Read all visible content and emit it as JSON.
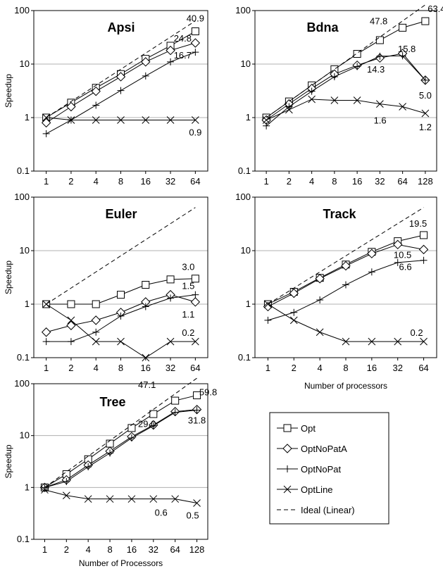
{
  "chart_data": [
    {
      "type": "line",
      "title": "Apsi",
      "ylabel": "Speedup",
      "xlabel": "",
      "x": [
        "1",
        "2",
        "4",
        "8",
        "16",
        "32",
        "64"
      ],
      "ylim": [
        0.1,
        100
      ],
      "yscale": "log",
      "yticks": [
        "0.1",
        "1",
        "10",
        "100"
      ],
      "grid": "horizontal",
      "series": [
        {
          "key": "opt",
          "name": "Opt",
          "marker": "square",
          "values": [
            1,
            1.9,
            3.6,
            6.5,
            12.5,
            22,
            40.9
          ]
        },
        {
          "key": "optnopata",
          "name": "OptNoPatA",
          "marker": "diamond",
          "values": [
            0.8,
            1.6,
            3.1,
            5.8,
            11,
            18,
            24.8
          ]
        },
        {
          "key": "optnopat",
          "name": "OptNoPat",
          "marker": "plus",
          "values": [
            0.5,
            0.9,
            1.7,
            3.2,
            6,
            11,
            16.7
          ]
        },
        {
          "key": "optline",
          "name": "OptLine",
          "marker": "x",
          "values": [
            1,
            0.9,
            0.9,
            0.9,
            0.9,
            0.9,
            0.9
          ]
        },
        {
          "key": "ideal",
          "name": "Ideal (Linear)",
          "marker": "none",
          "dashed": true,
          "values": [
            1,
            2,
            4,
            8,
            16,
            32,
            64
          ]
        }
      ],
      "annotations": [
        {
          "text": "40.9",
          "xi": 6,
          "y": 40.9
        },
        {
          "text": "24.8",
          "xi": 6,
          "y": 24.8
        },
        {
          "text": "16.7",
          "xi": 6,
          "y": 16.7
        },
        {
          "text": "0.9",
          "xi": 6,
          "y": 0.9
        }
      ]
    },
    {
      "type": "line",
      "title": "Bdna",
      "ylabel": "",
      "xlabel": "",
      "x": [
        "1",
        "2",
        "4",
        "8",
        "16",
        "32",
        "64",
        "128"
      ],
      "ylim": [
        0.1,
        100
      ],
      "yscale": "log",
      "yticks": [
        "0.1",
        "1",
        "10",
        "100"
      ],
      "grid": "horizontal",
      "series": [
        {
          "key": "opt",
          "name": "Opt",
          "marker": "square",
          "values": [
            1,
            2,
            4,
            8,
            15.5,
            28,
            47.8,
            63.4
          ]
        },
        {
          "key": "optnopata",
          "name": "OptNoPatA",
          "marker": "diamond",
          "values": [
            0.9,
            1.8,
            3.5,
            6.5,
            9.5,
            13,
            15.8,
            5
          ]
        },
        {
          "key": "optnopat",
          "name": "OptNoPat",
          "marker": "plus",
          "values": [
            0.7,
            1.6,
            3.1,
            5.8,
            9,
            14,
            14.3,
            5
          ]
        },
        {
          "key": "optline",
          "name": "OptLine",
          "marker": "x",
          "values": [
            0.9,
            1.4,
            2.2,
            2.1,
            2.1,
            1.8,
            1.6,
            1.2
          ]
        },
        {
          "key": "ideal",
          "name": "Ideal (Linear)",
          "marker": "none",
          "dashed": true,
          "values": [
            1,
            2,
            4,
            8,
            16,
            32,
            64,
            128
          ]
        }
      ],
      "annotations": [
        {
          "text": "63.4",
          "xi": 7,
          "y": 63.4
        },
        {
          "text": "47.8",
          "xi": 6,
          "y": 47.8
        },
        {
          "text": "15.8",
          "xi": 6,
          "y": 15.8
        },
        {
          "text": "14.3",
          "xi": 6,
          "y": 14.3
        },
        {
          "text": "5.0",
          "xi": 7,
          "y": 5
        },
        {
          "text": "1.6",
          "xi": 6,
          "y": 1.6
        },
        {
          "text": "1.2",
          "xi": 7,
          "y": 1.2
        }
      ]
    },
    {
      "type": "line",
      "title": "Euler",
      "ylabel": "Speedup",
      "xlabel": "",
      "x": [
        "1",
        "2",
        "4",
        "8",
        "16",
        "32",
        "64"
      ],
      "ylim": [
        0.1,
        100
      ],
      "yscale": "log",
      "yticks": [
        "0.1",
        "1",
        "10",
        "100"
      ],
      "grid": "horizontal",
      "series": [
        {
          "key": "opt",
          "name": "Opt",
          "marker": "square",
          "values": [
            1,
            1,
            1,
            1.5,
            2.3,
            2.9,
            3
          ]
        },
        {
          "key": "optnopata",
          "name": "OptNoPatA",
          "marker": "diamond",
          "values": [
            0.3,
            0.4,
            0.5,
            0.7,
            1.1,
            1.5,
            1.1
          ]
        },
        {
          "key": "optnopat",
          "name": "OptNoPat",
          "marker": "plus",
          "values": [
            0.2,
            0.2,
            0.3,
            0.6,
            0.9,
            1.3,
            1.5
          ]
        },
        {
          "key": "optline",
          "name": "OptLine",
          "marker": "x",
          "values": [
            1,
            0.5,
            0.2,
            0.2,
            0.1,
            0.2,
            0.2
          ]
        },
        {
          "key": "ideal",
          "name": "Ideal (Linear)",
          "marker": "none",
          "dashed": true,
          "values": [
            1,
            2,
            4,
            8,
            16,
            32,
            64
          ]
        }
      ],
      "annotations": [
        {
          "text": "3.0",
          "xi": 6,
          "y": 3
        },
        {
          "text": "1.5",
          "xi": 6,
          "y": 1.5
        },
        {
          "text": "1.1",
          "xi": 6,
          "y": 1.1
        },
        {
          "text": "0.2",
          "xi": 6,
          "y": 0.2
        }
      ]
    },
    {
      "type": "line",
      "title": "Track",
      "ylabel": "",
      "xlabel": "Number of processors",
      "x": [
        "1",
        "2",
        "4",
        "8",
        "16",
        "32",
        "64"
      ],
      "ylim": [
        0.1,
        100
      ],
      "yscale": "log",
      "yticks": [
        "0.1",
        "1",
        "10",
        "100"
      ],
      "grid": "horizontal",
      "series": [
        {
          "key": "opt",
          "name": "Opt",
          "marker": "square",
          "values": [
            1,
            1.7,
            3.1,
            5.5,
            9.5,
            15,
            19.5
          ]
        },
        {
          "key": "optnopata",
          "name": "OptNoPatA",
          "marker": "diamond",
          "values": [
            0.9,
            1.6,
            3,
            5.2,
            8.8,
            13,
            10.5
          ]
        },
        {
          "key": "optnopat",
          "name": "OptNoPat",
          "marker": "plus",
          "values": [
            0.5,
            0.7,
            1.2,
            2.3,
            4,
            6,
            6.6
          ]
        },
        {
          "key": "optline",
          "name": "OptLine",
          "marker": "x",
          "values": [
            1,
            0.5,
            0.3,
            0.2,
            0.2,
            0.2,
            0.2
          ]
        },
        {
          "key": "ideal",
          "name": "Ideal (Linear)",
          "marker": "none",
          "dashed": true,
          "values": [
            1,
            2,
            4,
            8,
            16,
            32,
            64
          ]
        }
      ],
      "annotations": [
        {
          "text": "19.5",
          "xi": 6,
          "y": 19.5
        },
        {
          "text": "10.5",
          "xi": 6,
          "y": 10.5
        },
        {
          "text": "6.6",
          "xi": 6,
          "y": 6.6
        },
        {
          "text": "0.2",
          "xi": 6,
          "y": 0.2
        }
      ]
    },
    {
      "type": "line",
      "title": "Tree",
      "ylabel": "Speedup",
      "xlabel": "Number of Processors",
      "x": [
        "1",
        "2",
        "4",
        "8",
        "16",
        "32",
        "64",
        "128"
      ],
      "ylim": [
        0.1,
        100
      ],
      "yscale": "log",
      "yticks": [
        "0.1",
        "1",
        "10",
        "100"
      ],
      "grid": "horizontal",
      "series": [
        {
          "key": "opt",
          "name": "Opt",
          "marker": "square",
          "values": [
            1,
            1.8,
            3.5,
            7,
            14,
            26,
            47.1,
            59.8
          ]
        },
        {
          "key": "optnopata",
          "name": "OptNoPatA",
          "marker": "diamond",
          "values": [
            1,
            1.4,
            2.7,
            5,
            9.5,
            16,
            29,
            31.8
          ]
        },
        {
          "key": "optnopat",
          "name": "OptNoPat",
          "marker": "plus",
          "values": [
            1,
            1.3,
            2.5,
            4.6,
            9,
            15.5,
            28,
            31
          ]
        },
        {
          "key": "optline",
          "name": "OptLine",
          "marker": "x",
          "values": [
            0.9,
            0.7,
            0.6,
            0.6,
            0.6,
            0.6,
            0.6,
            0.5
          ]
        },
        {
          "key": "ideal",
          "name": "Ideal (Linear)",
          "marker": "none",
          "dashed": true,
          "values": [
            1,
            2,
            4,
            8,
            16,
            32,
            64,
            128
          ]
        }
      ],
      "annotations": [
        {
          "text": "47.1",
          "xi": 6,
          "y": 47.1
        },
        {
          "text": "59.8",
          "xi": 7,
          "y": 59.8
        },
        {
          "text": "29.0",
          "xi": 6,
          "y": 29
        },
        {
          "text": "31.8",
          "xi": 7,
          "y": 31.8
        },
        {
          "text": "0.6",
          "xi": 6,
          "y": 0.6
        },
        {
          "text": "0.5",
          "xi": 7,
          "y": 0.5
        }
      ]
    }
  ],
  "legend": {
    "placement": "bottom-right",
    "items": [
      {
        "key": "opt",
        "name": "Opt",
        "marker": "square"
      },
      {
        "key": "optnopata",
        "name": "OptNoPatA",
        "marker": "diamond"
      },
      {
        "key": "optnopat",
        "name": "OptNoPat",
        "marker": "plus"
      },
      {
        "key": "optline",
        "name": "OptLine",
        "marker": "x"
      },
      {
        "key": "ideal",
        "name": "Ideal (Linear)",
        "marker": "none",
        "dashed": true
      }
    ]
  },
  "colors": {
    "line": "#000000",
    "grid": "#b0b0b0",
    "marker_fill": "#ffffff",
    "background": "#ffffff"
  }
}
